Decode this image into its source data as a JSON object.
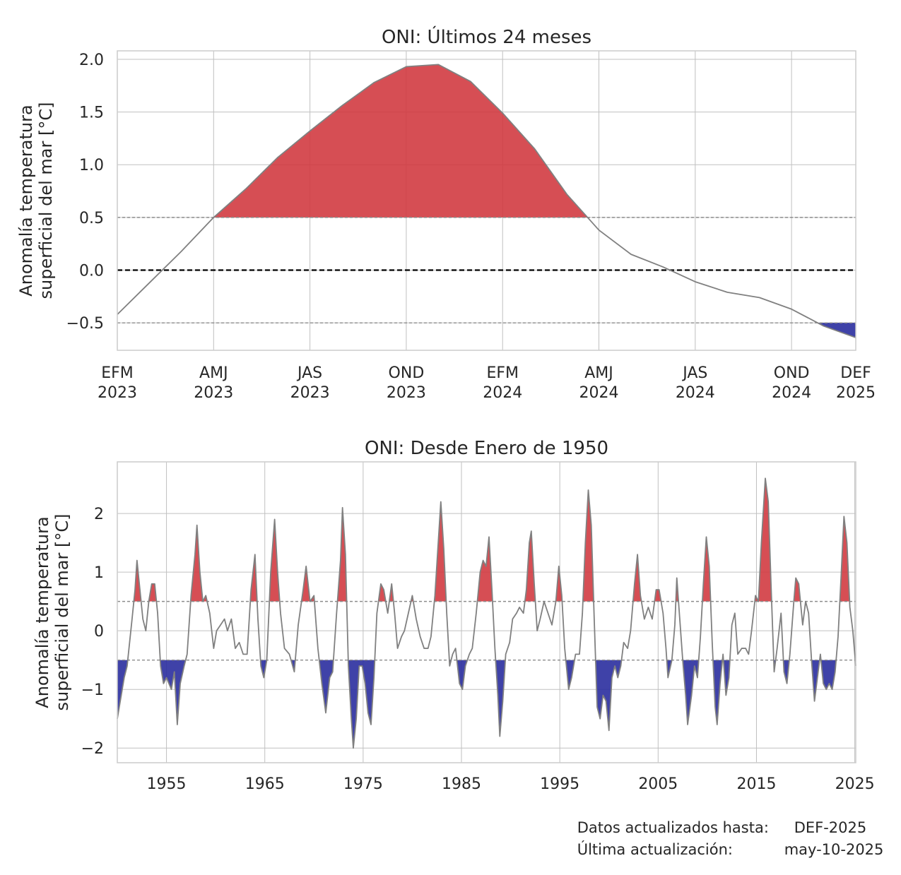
{
  "chart_data": [
    {
      "type": "area",
      "title": "ONI: Últimos 24 meses",
      "xlabel": "",
      "ylabel_lines": [
        "Anomalía temperatura",
        "superficial del mar [°C]"
      ],
      "x_tick_labels": [
        {
          "season": "EFM",
          "year": "2023"
        },
        {
          "season": "AMJ",
          "year": "2023"
        },
        {
          "season": "JAS",
          "year": "2023"
        },
        {
          "season": "OND",
          "year": "2023"
        },
        {
          "season": "EFM",
          "year": "2024"
        },
        {
          "season": "AMJ",
          "year": "2024"
        },
        {
          "season": "JAS",
          "year": "2024"
        },
        {
          "season": "OND",
          "year": "2024"
        },
        {
          "season": "DEF",
          "year": "2025"
        }
      ],
      "x_tick_index": [
        0,
        3,
        6,
        9,
        12,
        15,
        18,
        21,
        23
      ],
      "y_ticks": [
        "2.0",
        "1.5",
        "1.0",
        "0.5",
        "0.0",
        "−0.5"
      ],
      "y_tick_values": [
        2.0,
        1.5,
        1.0,
        0.5,
        0.0,
        -0.5
      ],
      "ylim": [
        -0.76,
        2.08
      ],
      "thresholds": [
        0.5,
        -0.5
      ],
      "values": [
        -0.42,
        -0.12,
        0.18,
        0.5,
        0.77,
        1.07,
        1.32,
        1.56,
        1.78,
        1.93,
        1.95,
        1.79,
        1.49,
        1.15,
        0.72,
        0.38,
        0.15,
        0.03,
        -0.11,
        -0.21,
        -0.26,
        -0.37,
        -0.53,
        -0.64
      ]
    },
    {
      "type": "area",
      "title": "ONI: Desde Enero de 1950",
      "xlabel": "",
      "ylabel_lines": [
        "Anomalía temperatura",
        "superficial del mar [°C]"
      ],
      "x_ticks": [
        "1955",
        "1965",
        "1975",
        "1985",
        "1995",
        "2005",
        "2015",
        "2025"
      ],
      "x_tick_values": [
        1955,
        1965,
        1975,
        1985,
        1995,
        2005,
        2015,
        2025
      ],
      "y_ticks": [
        "2",
        "1",
        "0",
        "−1",
        "−2"
      ],
      "y_tick_values": [
        2,
        1,
        0,
        -1,
        -2
      ],
      "xlim": [
        1950.0,
        2025.1
      ],
      "ylim": [
        -2.25,
        2.88
      ],
      "thresholds": [
        0.5,
        -0.5
      ],
      "series_points": [
        [
          1950.0,
          -1.5
        ],
        [
          1950.3,
          -1.2
        ],
        [
          1950.7,
          -0.8
        ],
        [
          1951.0,
          -0.6
        ],
        [
          1951.5,
          0.2
        ],
        [
          1951.8,
          0.7
        ],
        [
          1952.0,
          1.2
        ],
        [
          1952.3,
          0.7
        ],
        [
          1952.6,
          0.2
        ],
        [
          1952.9,
          0.0
        ],
        [
          1953.2,
          0.5
        ],
        [
          1953.5,
          0.8
        ],
        [
          1953.8,
          0.8
        ],
        [
          1954.1,
          0.3
        ],
        [
          1954.4,
          -0.6
        ],
        [
          1954.7,
          -0.9
        ],
        [
          1955.0,
          -0.8
        ],
        [
          1955.5,
          -1.0
        ],
        [
          1955.8,
          -0.7
        ],
        [
          1956.1,
          -1.6
        ],
        [
          1956.4,
          -0.9
        ],
        [
          1956.8,
          -0.6
        ],
        [
          1957.1,
          -0.4
        ],
        [
          1957.5,
          0.6
        ],
        [
          1957.9,
          1.3
        ],
        [
          1958.1,
          1.8
        ],
        [
          1958.4,
          1.0
        ],
        [
          1958.7,
          0.5
        ],
        [
          1959.0,
          0.6
        ],
        [
          1959.4,
          0.3
        ],
        [
          1959.8,
          -0.3
        ],
        [
          1960.1,
          0.0
        ],
        [
          1960.5,
          0.1
        ],
        [
          1960.9,
          0.2
        ],
        [
          1961.2,
          0.0
        ],
        [
          1961.6,
          0.2
        ],
        [
          1962.0,
          -0.3
        ],
        [
          1962.4,
          -0.2
        ],
        [
          1962.8,
          -0.4
        ],
        [
          1963.2,
          -0.4
        ],
        [
          1963.6,
          0.7
        ],
        [
          1964.0,
          1.3
        ],
        [
          1964.3,
          0.2
        ],
        [
          1964.6,
          -0.6
        ],
        [
          1964.9,
          -0.8
        ],
        [
          1965.2,
          -0.5
        ],
        [
          1965.6,
          1.0
        ],
        [
          1966.0,
          1.9
        ],
        [
          1966.3,
          1.0
        ],
        [
          1966.6,
          0.3
        ],
        [
          1967.0,
          -0.3
        ],
        [
          1967.5,
          -0.4
        ],
        [
          1968.0,
          -0.7
        ],
        [
          1968.4,
          0.1
        ],
        [
          1968.9,
          0.7
        ],
        [
          1969.2,
          1.1
        ],
        [
          1969.6,
          0.5
        ],
        [
          1970.0,
          0.6
        ],
        [
          1970.4,
          -0.3
        ],
        [
          1970.8,
          -0.9
        ],
        [
          1971.2,
          -1.4
        ],
        [
          1971.6,
          -0.8
        ],
        [
          1971.9,
          -0.7
        ],
        [
          1972.3,
          0.3
        ],
        [
          1972.7,
          1.2
        ],
        [
          1972.9,
          2.1
        ],
        [
          1973.2,
          1.3
        ],
        [
          1973.5,
          -0.6
        ],
        [
          1973.8,
          -1.5
        ],
        [
          1974.0,
          -2.0
        ],
        [
          1974.3,
          -1.5
        ],
        [
          1974.6,
          -0.6
        ],
        [
          1974.9,
          -0.6
        ],
        [
          1975.2,
          -0.9
        ],
        [
          1975.5,
          -1.4
        ],
        [
          1975.8,
          -1.6
        ],
        [
          1976.1,
          -0.8
        ],
        [
          1976.4,
          0.3
        ],
        [
          1976.8,
          0.8
        ],
        [
          1977.1,
          0.7
        ],
        [
          1977.5,
          0.3
        ],
        [
          1977.9,
          0.8
        ],
        [
          1978.2,
          0.3
        ],
        [
          1978.5,
          -0.3
        ],
        [
          1978.9,
          -0.1
        ],
        [
          1979.2,
          0.0
        ],
        [
          1979.6,
          0.3
        ],
        [
          1980.0,
          0.6
        ],
        [
          1980.4,
          0.2
        ],
        [
          1980.8,
          -0.1
        ],
        [
          1981.2,
          -0.3
        ],
        [
          1981.6,
          -0.3
        ],
        [
          1981.9,
          -0.1
        ],
        [
          1982.3,
          0.6
        ],
        [
          1982.6,
          1.4
        ],
        [
          1982.9,
          2.2
        ],
        [
          1983.2,
          1.4
        ],
        [
          1983.5,
          0.3
        ],
        [
          1983.8,
          -0.6
        ],
        [
          1984.1,
          -0.4
        ],
        [
          1984.4,
          -0.3
        ],
        [
          1984.8,
          -0.9
        ],
        [
          1985.1,
          -1.0
        ],
        [
          1985.4,
          -0.6
        ],
        [
          1985.8,
          -0.4
        ],
        [
          1986.1,
          -0.3
        ],
        [
          1986.5,
          0.3
        ],
        [
          1986.9,
          1.0
        ],
        [
          1987.2,
          1.2
        ],
        [
          1987.5,
          1.1
        ],
        [
          1987.8,
          1.6
        ],
        [
          1988.1,
          0.7
        ],
        [
          1988.4,
          -0.3
        ],
        [
          1988.7,
          -1.1
        ],
        [
          1988.9,
          -1.8
        ],
        [
          1989.2,
          -1.2
        ],
        [
          1989.5,
          -0.4
        ],
        [
          1989.9,
          -0.2
        ],
        [
          1990.2,
          0.2
        ],
        [
          1990.6,
          0.3
        ],
        [
          1990.9,
          0.4
        ],
        [
          1991.3,
          0.3
        ],
        [
          1991.6,
          0.7
        ],
        [
          1991.9,
          1.5
        ],
        [
          1992.1,
          1.7
        ],
        [
          1992.4,
          0.8
        ],
        [
          1992.7,
          0.0
        ],
        [
          1993.0,
          0.2
        ],
        [
          1993.4,
          0.5
        ],
        [
          1993.8,
          0.3
        ],
        [
          1994.2,
          0.1
        ],
        [
          1994.6,
          0.5
        ],
        [
          1994.9,
          1.1
        ],
        [
          1995.2,
          0.6
        ],
        [
          1995.5,
          -0.3
        ],
        [
          1995.9,
          -1.0
        ],
        [
          1996.2,
          -0.8
        ],
        [
          1996.6,
          -0.4
        ],
        [
          1997.0,
          -0.4
        ],
        [
          1997.3,
          0.3
        ],
        [
          1997.6,
          1.5
        ],
        [
          1997.9,
          2.4
        ],
        [
          1998.2,
          1.8
        ],
        [
          1998.5,
          0.2
        ],
        [
          1998.8,
          -1.3
        ],
        [
          1999.1,
          -1.5
        ],
        [
          1999.4,
          -1.1
        ],
        [
          1999.7,
          -1.2
        ],
        [
          2000.0,
          -1.7
        ],
        [
          2000.3,
          -0.8
        ],
        [
          2000.6,
          -0.6
        ],
        [
          2000.9,
          -0.8
        ],
        [
          2001.2,
          -0.6
        ],
        [
          2001.5,
          -0.2
        ],
        [
          2001.9,
          -0.3
        ],
        [
          2002.2,
          0.0
        ],
        [
          2002.6,
          0.8
        ],
        [
          2002.9,
          1.3
        ],
        [
          2003.2,
          0.6
        ],
        [
          2003.6,
          0.2
        ],
        [
          2004.0,
          0.4
        ],
        [
          2004.4,
          0.2
        ],
        [
          2004.8,
          0.7
        ],
        [
          2005.1,
          0.7
        ],
        [
          2005.5,
          0.3
        ],
        [
          2005.8,
          -0.3
        ],
        [
          2006.0,
          -0.8
        ],
        [
          2006.4,
          -0.5
        ],
        [
          2006.7,
          0.1
        ],
        [
          2006.9,
          0.9
        ],
        [
          2007.2,
          0.2
        ],
        [
          2007.5,
          -0.5
        ],
        [
          2007.8,
          -1.1
        ],
        [
          2008.0,
          -1.6
        ],
        [
          2008.4,
          -1.1
        ],
        [
          2008.7,
          -0.6
        ],
        [
          2009.0,
          -0.8
        ],
        [
          2009.3,
          -0.1
        ],
        [
          2009.6,
          0.8
        ],
        [
          2009.9,
          1.6
        ],
        [
          2010.2,
          1.1
        ],
        [
          2010.5,
          -0.2
        ],
        [
          2010.8,
          -1.3
        ],
        [
          2011.0,
          -1.6
        ],
        [
          2011.3,
          -0.9
        ],
        [
          2011.6,
          -0.4
        ],
        [
          2011.9,
          -1.1
        ],
        [
          2012.2,
          -0.8
        ],
        [
          2012.5,
          0.1
        ],
        [
          2012.8,
          0.3
        ],
        [
          2013.1,
          -0.4
        ],
        [
          2013.5,
          -0.3
        ],
        [
          2013.9,
          -0.3
        ],
        [
          2014.2,
          -0.4
        ],
        [
          2014.5,
          0.0
        ],
        [
          2014.9,
          0.6
        ],
        [
          2015.2,
          0.5
        ],
        [
          2015.5,
          1.5
        ],
        [
          2015.9,
          2.6
        ],
        [
          2016.2,
          2.2
        ],
        [
          2016.5,
          0.7
        ],
        [
          2016.8,
          -0.7
        ],
        [
          2017.1,
          -0.3
        ],
        [
          2017.5,
          0.3
        ],
        [
          2017.8,
          -0.7
        ],
        [
          2018.1,
          -0.9
        ],
        [
          2018.4,
          -0.4
        ],
        [
          2018.8,
          0.5
        ],
        [
          2019.0,
          0.9
        ],
        [
          2019.3,
          0.8
        ],
        [
          2019.7,
          0.1
        ],
        [
          2020.0,
          0.5
        ],
        [
          2020.3,
          0.3
        ],
        [
          2020.6,
          -0.5
        ],
        [
          2020.9,
          -1.2
        ],
        [
          2021.2,
          -0.8
        ],
        [
          2021.5,
          -0.4
        ],
        [
          2021.8,
          -0.9
        ],
        [
          2022.1,
          -1.0
        ],
        [
          2022.4,
          -0.9
        ],
        [
          2022.7,
          -1.0
        ],
        [
          2023.0,
          -0.7
        ],
        [
          2023.3,
          -0.1
        ],
        [
          2023.6,
          0.9
        ],
        [
          2023.9,
          1.95
        ],
        [
          2024.2,
          1.5
        ],
        [
          2024.5,
          0.4
        ],
        [
          2024.8,
          0.0
        ],
        [
          2025.1,
          -0.6
        ]
      ]
    }
  ],
  "footer": {
    "updated_label": "Datos actualizados hasta:",
    "updated_value": "DEF-2025",
    "last_update_label": "Última actualización:",
    "last_update_value": "may-10-2025"
  },
  "colors": {
    "warm_fill": "#d0363c",
    "cold_fill": "#2a2e9e",
    "series_line": "#808080",
    "zero_line": "#000000",
    "threshold_line": "#8c8c8c",
    "grid": "#c0c0c0",
    "frame": "#cccccc"
  }
}
